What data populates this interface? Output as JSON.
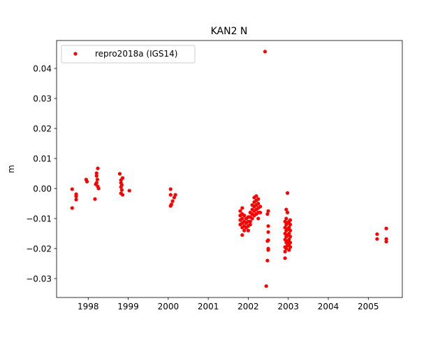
{
  "chart_data": {
    "type": "scatter",
    "title": "KAN2 N",
    "xlabel": "",
    "ylabel": "m",
    "xlim": [
      1997.21,
      2005.85
    ],
    "ylim": [
      -0.0363,
      0.0493
    ],
    "xticks": [
      1998,
      1999,
      2000,
      2001,
      2002,
      2003,
      2004,
      2005
    ],
    "yticks": [
      -0.03,
      -0.02,
      -0.01,
      0.0,
      0.01,
      0.02,
      0.03,
      0.04
    ],
    "ytick_labels": [
      "−0.03",
      "−0.02",
      "−0.01",
      "0.00",
      "0.01",
      "0.02",
      "0.03",
      "0.04"
    ],
    "grid": false,
    "legend_position": "top-left",
    "series": [
      {
        "name": "repro2018a (IGS14)",
        "color": "#ff0000",
        "marker": "circle",
        "points": [
          [
            1997.6,
            -0.0002
          ],
          [
            1997.6,
            -0.0065
          ],
          [
            1997.7,
            -0.0019
          ],
          [
            1997.7,
            -0.0026
          ],
          [
            1997.7,
            -0.0037
          ],
          [
            1997.95,
            0.003
          ],
          [
            1997.97,
            0.0023
          ],
          [
            1998.17,
            -0.0035
          ],
          [
            1998.24,
            0.0067
          ],
          [
            1998.21,
            0.0051
          ],
          [
            1998.21,
            0.0042
          ],
          [
            1998.23,
            0.003
          ],
          [
            1998.21,
            0.0019
          ],
          [
            1998.19,
            0.0014
          ],
          [
            1998.26,
            0.0
          ],
          [
            1998.24,
            0.0007
          ],
          [
            1998.79,
            0.0049
          ],
          [
            1998.86,
            0.0035
          ],
          [
            1998.82,
            0.0028
          ],
          [
            1998.82,
            0.0019
          ],
          [
            1998.84,
            0.0012
          ],
          [
            1998.82,
            0.0005
          ],
          [
            1998.84,
            -0.0005
          ],
          [
            1998.82,
            -0.0016
          ],
          [
            1998.86,
            -0.0021
          ],
          [
            1999.03,
            -0.0007
          ],
          [
            2000.06,
            -0.0002
          ],
          [
            2000.06,
            -0.0021
          ],
          [
            2000.18,
            -0.0021
          ],
          [
            2000.15,
            -0.003
          ],
          [
            2000.11,
            -0.0042
          ],
          [
            2000.08,
            -0.0053
          ],
          [
            2000.06,
            -0.0058
          ],
          [
            2001.8,
            -0.0075
          ],
          [
            2001.8,
            -0.009
          ],
          [
            2001.8,
            -0.0105
          ],
          [
            2001.8,
            -0.012
          ],
          [
            2001.85,
            -0.0065
          ],
          [
            2001.85,
            -0.0085
          ],
          [
            2001.85,
            -0.01
          ],
          [
            2001.85,
            -0.0115
          ],
          [
            2001.85,
            -0.013
          ],
          [
            2001.85,
            -0.0155
          ],
          [
            2001.9,
            -0.009
          ],
          [
            2001.9,
            -0.011
          ],
          [
            2001.9,
            -0.0125
          ],
          [
            2001.9,
            -0.014
          ],
          [
            2001.95,
            -0.01
          ],
          [
            2001.95,
            -0.0115
          ],
          [
            2001.95,
            -0.013
          ],
          [
            2002.0,
            -0.0095
          ],
          [
            2002.0,
            -0.011
          ],
          [
            2002.0,
            -0.0125
          ],
          [
            2002.0,
            -0.014
          ],
          [
            2002.05,
            -0.008
          ],
          [
            2002.05,
            -0.0095
          ],
          [
            2002.05,
            -0.011
          ],
          [
            2002.05,
            -0.012
          ],
          [
            2002.1,
            -0.0055
          ],
          [
            2002.1,
            -0.007
          ],
          [
            2002.1,
            -0.0085
          ],
          [
            2002.1,
            -0.01
          ],
          [
            2002.15,
            -0.003
          ],
          [
            2002.15,
            -0.0045
          ],
          [
            2002.15,
            -0.006
          ],
          [
            2002.15,
            -0.0075
          ],
          [
            2002.15,
            -0.009
          ],
          [
            2002.2,
            -0.0025
          ],
          [
            2002.2,
            -0.004
          ],
          [
            2002.2,
            -0.0055
          ],
          [
            2002.2,
            -0.007
          ],
          [
            2002.2,
            -0.0085
          ],
          [
            2002.25,
            -0.0035
          ],
          [
            2002.25,
            -0.005
          ],
          [
            2002.25,
            -0.0065
          ],
          [
            2002.25,
            -0.008
          ],
          [
            2002.25,
            -0.01
          ],
          [
            2002.3,
            -0.006
          ],
          [
            2002.3,
            -0.008
          ],
          [
            2002.42,
            0.0456
          ],
          [
            2002.45,
            -0.0325
          ],
          [
            2002.48,
            -0.0085
          ],
          [
            2002.48,
            -0.0175
          ],
          [
            2002.48,
            -0.024
          ],
          [
            2002.5,
            -0.0075
          ],
          [
            2002.5,
            -0.0125
          ],
          [
            2002.5,
            -0.0145
          ],
          [
            2002.5,
            -0.0172
          ],
          [
            2002.5,
            -0.02
          ],
          [
            2002.5,
            -0.0205
          ],
          [
            2002.92,
            -0.011
          ],
          [
            2002.92,
            -0.013
          ],
          [
            2002.92,
            -0.015
          ],
          [
            2002.92,
            -0.017
          ],
          [
            2002.92,
            -0.0195
          ],
          [
            2002.92,
            -0.021
          ],
          [
            2002.92,
            -0.0232
          ],
          [
            2002.95,
            -0.007
          ],
          [
            2002.95,
            -0.01
          ],
          [
            2002.95,
            -0.012
          ],
          [
            2002.95,
            -0.014
          ],
          [
            2002.95,
            -0.016
          ],
          [
            2002.95,
            -0.018
          ],
          [
            2002.95,
            -0.02
          ],
          [
            2002.98,
            -0.0015
          ],
          [
            2002.98,
            -0.008
          ],
          [
            2002.98,
            -0.0115
          ],
          [
            2002.98,
            -0.0135
          ],
          [
            2002.98,
            -0.0155
          ],
          [
            2002.98,
            -0.0175
          ],
          [
            2002.98,
            -0.019
          ],
          [
            2003.02,
            -0.011
          ],
          [
            2003.02,
            -0.013
          ],
          [
            2003.02,
            -0.015
          ],
          [
            2003.02,
            -0.017
          ],
          [
            2003.02,
            -0.0185
          ],
          [
            2003.02,
            -0.0205
          ],
          [
            2003.05,
            -0.0105
          ],
          [
            2003.05,
            -0.012
          ],
          [
            2003.05,
            -0.014
          ],
          [
            2003.05,
            -0.016
          ],
          [
            2003.05,
            -0.018
          ],
          [
            2003.05,
            -0.0195
          ],
          [
            2005.22,
            -0.0152
          ],
          [
            2005.22,
            -0.0168
          ],
          [
            2005.45,
            -0.0133
          ],
          [
            2005.45,
            -0.0168
          ],
          [
            2005.45,
            -0.0177
          ]
        ]
      }
    ]
  }
}
